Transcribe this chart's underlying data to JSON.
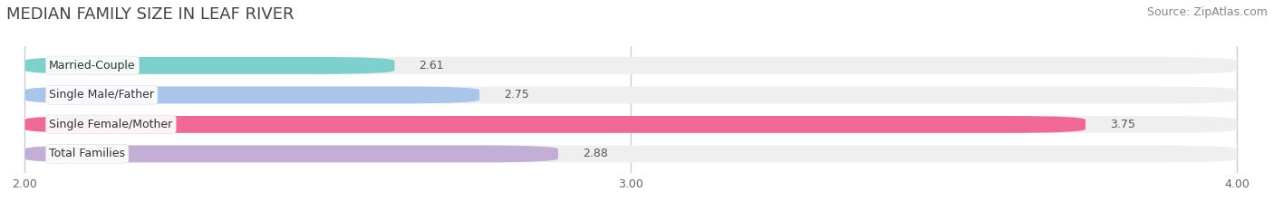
{
  "title": "MEDIAN FAMILY SIZE IN LEAF RIVER",
  "source": "Source: ZipAtlas.com",
  "categories": [
    "Married-Couple",
    "Single Male/Father",
    "Single Female/Mother",
    "Total Families"
  ],
  "values": [
    2.61,
    2.75,
    3.75,
    2.88
  ],
  "bar_colors": [
    "#7dd0cc",
    "#aac5ea",
    "#f06898",
    "#c3aed6"
  ],
  "x_min": 2.0,
  "x_max": 4.0,
  "x_ticks": [
    2.0,
    3.0,
    4.0
  ],
  "x_tick_labels": [
    "2.00",
    "3.00",
    "4.00"
  ],
  "background_color": "#ffffff",
  "bar_bg_color": "#efefef",
  "title_fontsize": 13,
  "label_fontsize": 9,
  "value_fontsize": 9,
  "tick_fontsize": 9,
  "source_fontsize": 9
}
